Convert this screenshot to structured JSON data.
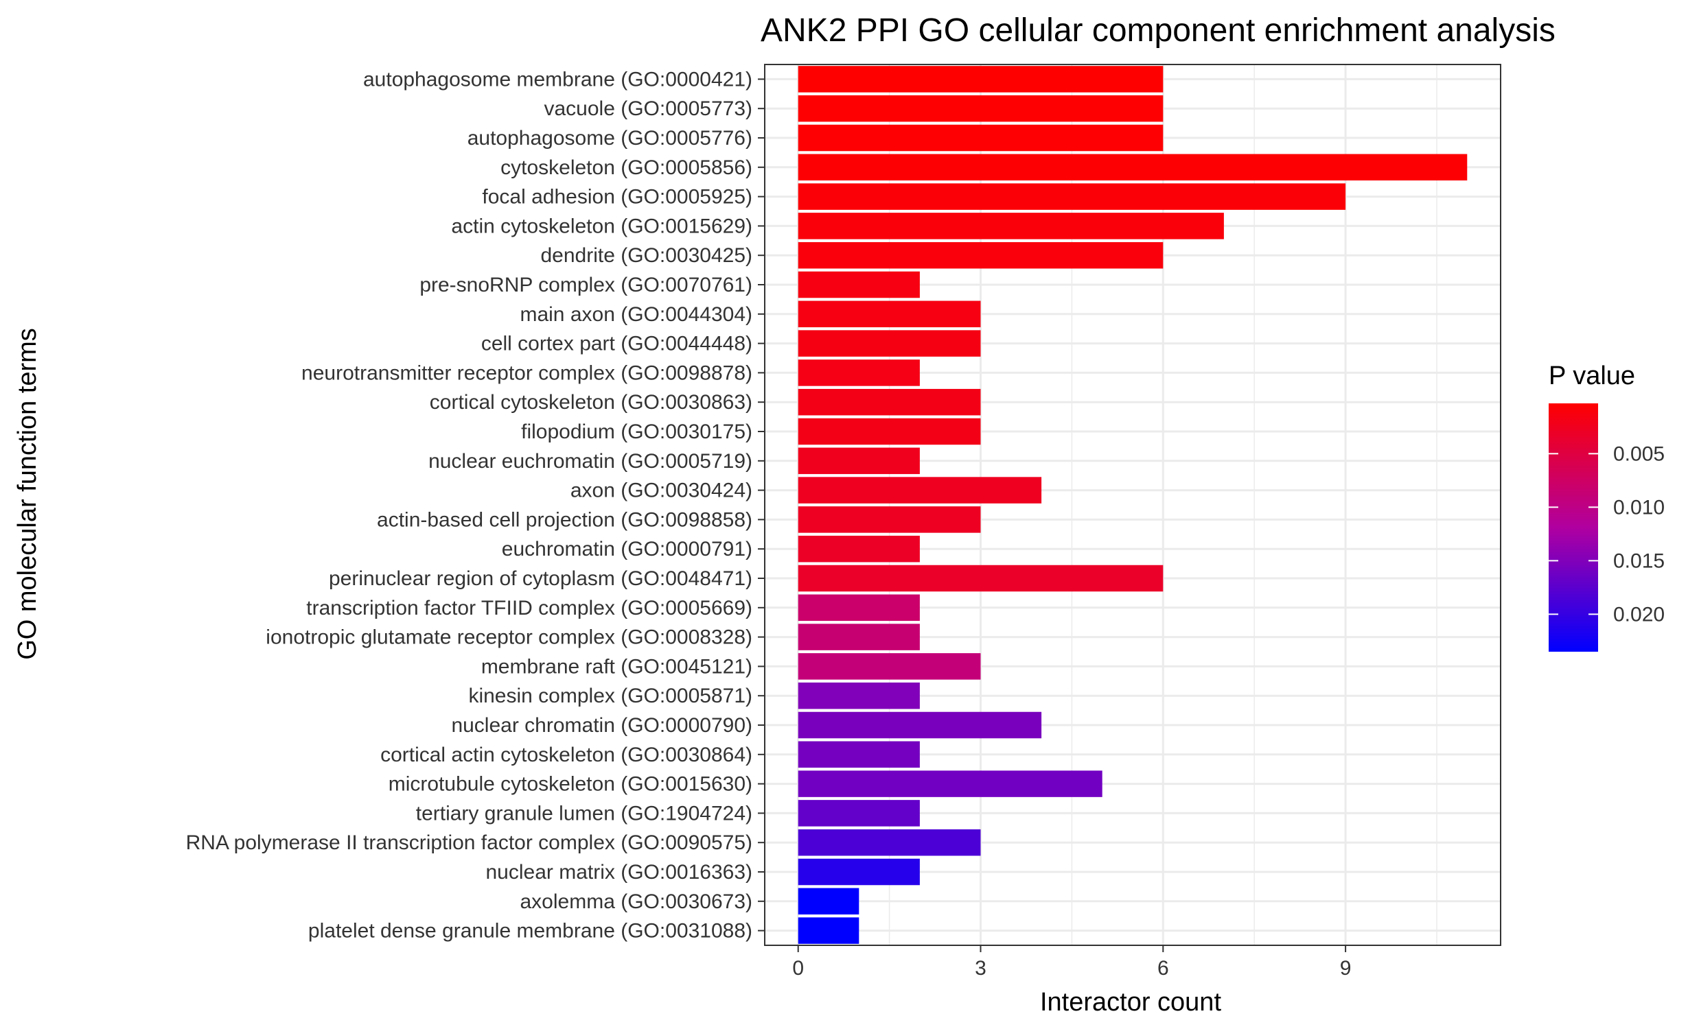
{
  "chart_data": {
    "type": "bar",
    "orientation": "horizontal",
    "title": "ANK2 PPI GO cellular component enrichment analysis",
    "xlabel": "Interactor count",
    "ylabel": "GO molecular function terms",
    "xlim": [
      -0.55,
      11.55
    ],
    "xticks": [
      0,
      3,
      6,
      9
    ],
    "grid": true,
    "legend": {
      "title": "P value",
      "position": "right",
      "ticks": [
        "0.005",
        "0.010",
        "0.015",
        "0.020"
      ],
      "tick_values": [
        0.005,
        0.01,
        0.015,
        0.02
      ],
      "range": [
        0.0003,
        0.0235
      ],
      "low_color": "#ff0000",
      "high_color": "#0000ff"
    },
    "categories": [
      "autophagosome membrane (GO:0000421)",
      "vacuole (GO:0005773)",
      "autophagosome (GO:0005776)",
      "cytoskeleton (GO:0005856)",
      "focal adhesion (GO:0005925)",
      "actin cytoskeleton (GO:0015629)",
      "dendrite (GO:0030425)",
      "pre-snoRNP complex (GO:0070761)",
      "main axon (GO:0044304)",
      "cell cortex part (GO:0044448)",
      "neurotransmitter receptor complex (GO:0098878)",
      "cortical cytoskeleton (GO:0030863)",
      "filopodium (GO:0030175)",
      "nuclear euchromatin (GO:0005719)",
      "axon (GO:0030424)",
      "actin-based cell projection (GO:0098858)",
      "euchromatin (GO:0000791)",
      "perinuclear region of cytoplasm (GO:0048471)",
      "transcription factor TFIID complex (GO:0005669)",
      "ionotropic glutamate receptor complex (GO:0008328)",
      "membrane raft (GO:0045121)",
      "kinesin complex (GO:0005871)",
      "nuclear chromatin (GO:0000790)",
      "cortical actin cytoskeleton (GO:0030864)",
      "microtubule cytoskeleton (GO:0015630)",
      "tertiary granule lumen (GO:1904724)",
      "RNA polymerase II transcription factor complex (GO:0090575)",
      "nuclear matrix (GO:0016363)",
      "axolemma (GO:0030673)",
      "platelet dense granule membrane (GO:0031088)"
    ],
    "values": [
      6,
      6,
      6,
      11,
      9,
      7,
      6,
      2,
      3,
      3,
      2,
      3,
      3,
      2,
      4,
      3,
      2,
      6,
      2,
      2,
      3,
      2,
      4,
      2,
      5,
      2,
      3,
      2,
      1,
      1
    ],
    "p_values": [
      0.0003,
      0.0004,
      0.0005,
      0.0006,
      0.0008,
      0.001,
      0.0012,
      0.0015,
      0.0016,
      0.0017,
      0.0018,
      0.0019,
      0.002,
      0.0024,
      0.0026,
      0.0028,
      0.003,
      0.0033,
      0.008,
      0.0085,
      0.009,
      0.015,
      0.0155,
      0.0158,
      0.016,
      0.017,
      0.0185,
      0.021,
      0.0235,
      0.0235
    ]
  }
}
